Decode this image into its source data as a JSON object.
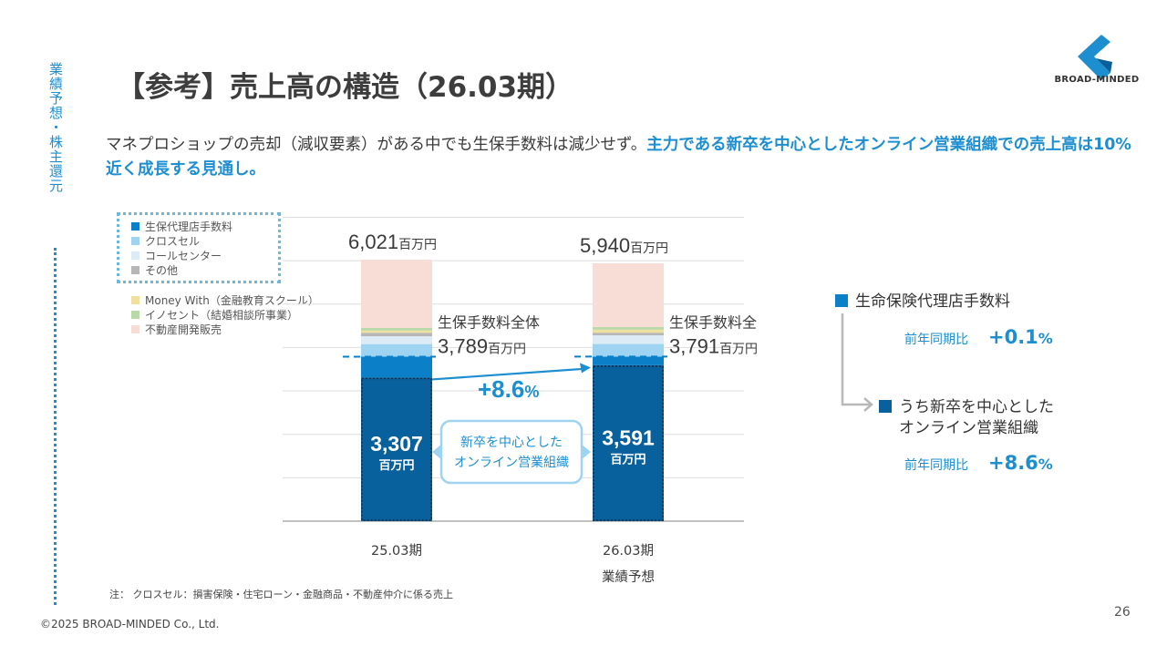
{
  "side_label": "業績予想・株主還元",
  "title": "【参考】売上高の構造（26.03期）",
  "logo": {
    "text": "BROAD-MINDED",
    "color": "#1d8fd1"
  },
  "lead": {
    "normal": "マネプロショップの売却（減収要素）がある中でも生保手数料は減少せず。",
    "highlight": "主力である新卒を中心としたオンライン営業組織での売上高は10%近く成長する見通し。"
  },
  "legend_boxed": [
    {
      "label": "生保代理店手数料",
      "color": "#0b7fc7"
    },
    {
      "label": "クロスセル",
      "color": "#9fd3f2"
    },
    {
      "label": "コールセンター",
      "color": "#ddebf7"
    },
    {
      "label": "その他",
      "color": "#b7b7b7"
    }
  ],
  "legend_other": [
    {
      "label": "Money With（金融教育スクール）",
      "color": "#f0e0a0"
    },
    {
      "label": "イノセント（結婚相談所事業）",
      "color": "#b9d9a8"
    },
    {
      "label": "不動産開発販売",
      "color": "#f8ddd6"
    }
  ],
  "chart_data": {
    "type": "bar",
    "stacked": true,
    "categories": [
      "25.03期",
      "26.03期"
    ],
    "category_sublabels": [
      "",
      "業績予想"
    ],
    "unit": "百万円",
    "totals": [
      6021,
      5940
    ],
    "totals_labels": [
      "6,021",
      "5,940"
    ],
    "life_insurance_fee_total": [
      3789,
      3791
    ],
    "life_insurance_fee_total_labels": [
      "3,789",
      "3,791"
    ],
    "life_insurance_fee_total_caption": "生保手数料全体",
    "series": [
      {
        "name": "新卒を中心としたオンライン営業組織",
        "values": [
          3307,
          3591
        ],
        "labels": [
          "3,307",
          "3,591"
        ],
        "color": "#08609c"
      },
      {
        "name": "生保代理店手数料",
        "values": [
          482,
          200
        ],
        "color": "#0b7fc7"
      },
      {
        "name": "クロスセル",
        "values": [
          290,
          290
        ],
        "color": "#9fd3f2"
      },
      {
        "name": "コールセンター",
        "values": [
          180,
          200
        ],
        "color": "#ddebf7"
      },
      {
        "name": "その他",
        "values": [
          80,
          60
        ],
        "color": "#b7b7b7"
      },
      {
        "name": "Money With（金融教育スクール）",
        "values": [
          50,
          70
        ],
        "color": "#f0e0a0"
      },
      {
        "name": "イノセント（結婚相談所事業）",
        "values": [
          60,
          60
        ],
        "color": "#b9d9a8"
      },
      {
        "name": "不動産開発販売",
        "values": [
          1572,
          1469
        ],
        "color": "#f8ddd6"
      }
    ],
    "ylim": [
      0,
      7000
    ],
    "grid": true,
    "growth_label": "+8.6",
    "growth_pct": "%",
    "callout": "新卒を中心とした\nオンライン営業組織"
  },
  "right_panel": {
    "item1": {
      "label": "生命保険代理店手数料",
      "color": "#0b7fc7",
      "yoy_label": "前年同期比",
      "yoy_value": "+0.1",
      "yoy_pct": "%"
    },
    "item2": {
      "label_line1": "うち新卒を中心とした",
      "label_line2": "オンライン営業組織",
      "color": "#08609c",
      "yoy_label": "前年同期比",
      "yoy_value": "+8.6",
      "yoy_pct": "%"
    }
  },
  "footnote": "注： クロスセル：損害保険・住宅ローン・金融商品・不動産仲介に係る売上",
  "copyright": "©2025 BROAD-MINDED Co., Ltd.",
  "page_number": "26"
}
